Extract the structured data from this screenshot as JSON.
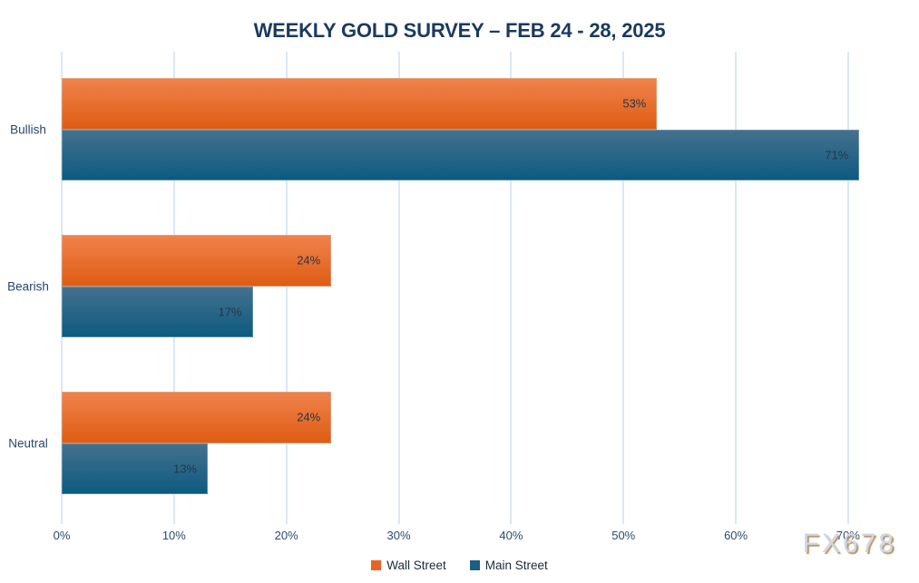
{
  "title": "WEEKLY GOLD SURVEY – FEB 24 - 28, 2025",
  "watermark": "FX678",
  "colors": {
    "background": "#ffffff",
    "title_text": "#1b3a5e",
    "axis_text": "#2b4a6e",
    "category_text": "#28466b",
    "value_label_text": "#26364a",
    "gridline": "#d9e8f6",
    "legend_text": "#1c2b3a",
    "watermark_text": "#ccd8e5",
    "watermark_shadow": "#bd9468",
    "series": [
      {
        "key": "wall-street",
        "gradient_top": "#f0834d",
        "gradient_bottom": "#de5c12",
        "legend_swatch": "#eb6127"
      },
      {
        "key": "main-street",
        "gradient_top": "#45718e",
        "gradient_bottom": "#0c5a80",
        "legend_swatch": "#1c5e85"
      }
    ]
  },
  "chart_data": {
    "type": "bar",
    "orientation": "horizontal",
    "title": "WEEKLY GOLD SURVEY – FEB 24 - 28, 2025",
    "categories": [
      "Bullish",
      "Bearish",
      "Neutral"
    ],
    "series": [
      {
        "name": "Wall Street",
        "values": [
          53,
          24,
          24
        ]
      },
      {
        "name": "Main Street",
        "values": [
          71,
          17,
          13
        ]
      }
    ],
    "value_suffix": "%",
    "x_ticks": [
      {
        "label": "0%",
        "value": 0
      },
      {
        "label": "10%",
        "value": 10
      },
      {
        "label": "20%",
        "value": 20
      },
      {
        "label": "30%",
        "value": 30
      },
      {
        "label": "40%",
        "value": 40
      },
      {
        "label": "50%",
        "value": 50
      },
      {
        "label": "60%",
        "value": 60
      },
      {
        "label": "70%",
        "value": 70
      }
    ],
    "xlim": [
      0,
      75.9
    ],
    "grid": "vertical",
    "legend_position": "bottom"
  }
}
